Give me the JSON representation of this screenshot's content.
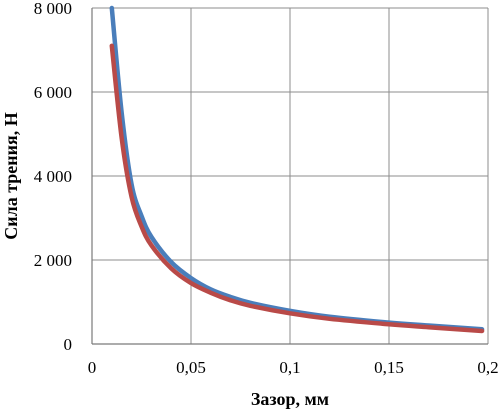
{
  "chart_data": {
    "type": "line",
    "title": "",
    "xlabel": "Зазор, мм",
    "ylabel": "Сила трения, Н",
    "xlim": [
      0,
      0.2
    ],
    "ylim": [
      0,
      8000
    ],
    "x_ticks": [
      "0",
      "0,05",
      "0,1",
      "0,15",
      "0,2"
    ],
    "y_ticks": [
      "0",
      "2 000",
      "4 000",
      "6 000",
      "8 000"
    ],
    "x_tick_values": [
      0,
      0.05,
      0.1,
      0.15,
      0.2
    ],
    "y_tick_values": [
      0,
      2000,
      4000,
      6000,
      8000
    ],
    "grid": true,
    "series": [
      {
        "color": "#4a7ebb",
        "x": [
          0.01,
          0.015,
          0.02,
          0.025,
          0.03,
          0.04,
          0.05,
          0.06,
          0.07,
          0.08,
          0.1,
          0.12,
          0.15,
          0.17,
          0.197
        ],
        "y": [
          8000,
          5500,
          3800,
          3050,
          2550,
          1950,
          1570,
          1300,
          1120,
          980,
          790,
          650,
          510,
          440,
          350
        ]
      },
      {
        "color": "#b94a48",
        "x": [
          0.01,
          0.015,
          0.02,
          0.025,
          0.03,
          0.04,
          0.05,
          0.06,
          0.07,
          0.08,
          0.1,
          0.12,
          0.15,
          0.17,
          0.197
        ],
        "y": [
          7100,
          4900,
          3500,
          2800,
          2350,
          1800,
          1450,
          1220,
          1040,
          910,
          730,
          600,
          470,
          400,
          310
        ]
      }
    ]
  }
}
